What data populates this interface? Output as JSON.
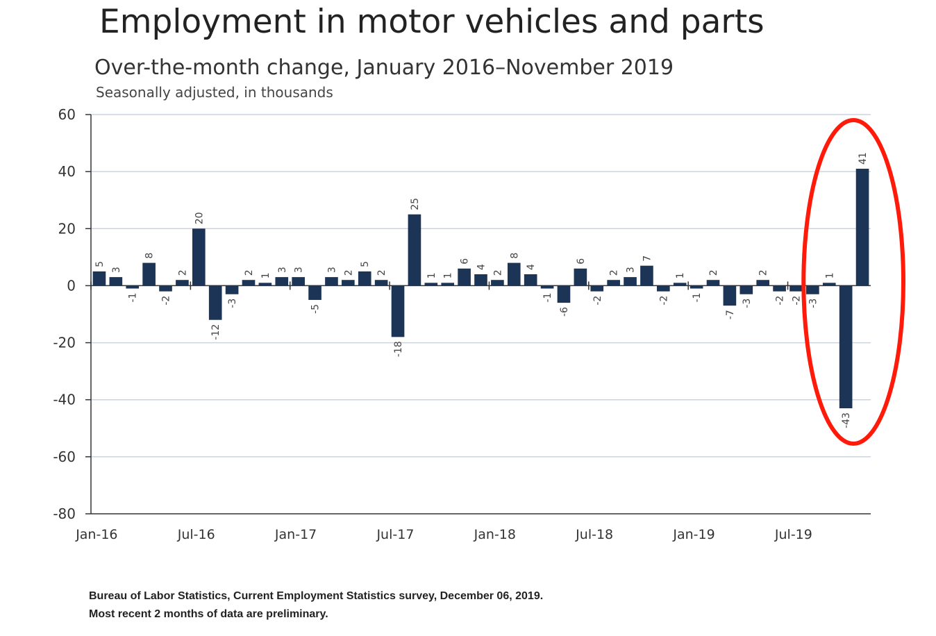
{
  "title": "Employment in motor vehicles and parts",
  "subtitle": "Over-the-month change, January 2016–November 2019",
  "unit_note": "Seasonally adjusted, in thousands",
  "source_line1": "Bureau of Labor Statistics, Current Employment Statistics survey, December 06, 2019.",
  "source_line2": "Most recent 2 months of data are preliminary.",
  "colors": {
    "bar": "#1c3557",
    "grid": "#c9d3e6",
    "highlight": "#ff1a0a",
    "axis": "#333333"
  },
  "chart_data": {
    "type": "bar",
    "title": "Employment in motor vehicles and parts",
    "subtitle": "Over-the-month change, January 2016–November 2019",
    "ylabel": "Seasonally adjusted, in thousands",
    "xlabel": "",
    "ylim": [
      -80,
      60
    ],
    "yticks": [
      60,
      40,
      20,
      0,
      -20,
      -40,
      -60,
      -80
    ],
    "grid": true,
    "xtick_labels": [
      "Jan-16",
      "Jul-16",
      "Jan-17",
      "Jul-17",
      "Jan-18",
      "Jul-18",
      "Jan-19",
      "Jul-19"
    ],
    "xtick_indices": [
      0,
      6,
      12,
      18,
      24,
      30,
      36,
      42
    ],
    "categories": [
      "Jan-16",
      "Feb-16",
      "Mar-16",
      "Apr-16",
      "May-16",
      "Jun-16",
      "Jul-16",
      "Aug-16",
      "Sep-16",
      "Oct-16",
      "Nov-16",
      "Dec-16",
      "Jan-17",
      "Feb-17",
      "Mar-17",
      "Apr-17",
      "May-17",
      "Jun-17",
      "Jul-17",
      "Aug-17",
      "Sep-17",
      "Oct-17",
      "Nov-17",
      "Dec-17",
      "Jan-18",
      "Feb-18",
      "Mar-18",
      "Apr-18",
      "May-18",
      "Jun-18",
      "Jul-18",
      "Aug-18",
      "Sep-18",
      "Oct-18",
      "Nov-18",
      "Dec-18",
      "Jan-19",
      "Feb-19",
      "Mar-19",
      "Apr-19",
      "May-19",
      "Jun-19",
      "Jul-19",
      "Aug-19",
      "Sep-19",
      "Oct-19",
      "Nov-19"
    ],
    "values": [
      5,
      3,
      -1,
      8,
      -2,
      2,
      20,
      -12,
      -3,
      2,
      1,
      3,
      3,
      -5,
      3,
      2,
      5,
      2,
      -18,
      25,
      1,
      1,
      6,
      4,
      2,
      8,
      4,
      -1,
      -6,
      6,
      -2,
      2,
      3,
      7,
      -2,
      1,
      -1,
      2,
      -7,
      -3,
      2,
      -2,
      -2,
      -3,
      1,
      -43,
      41
    ],
    "value_labels": [
      "5",
      "3",
      "-1",
      "8",
      "-2",
      "2",
      "20",
      "-12",
      "-3",
      "2",
      "1",
      "3",
      "3",
      "-5",
      "3",
      "2",
      "5",
      "2",
      "-18",
      "25",
      "1",
      "1",
      "6",
      "4",
      "2",
      "8",
      "4",
      "-1",
      "-6",
      "6",
      "-2",
      "2",
      "3",
      "7",
      "-2",
      "1",
      "-1",
      "2",
      "-7",
      "-3",
      "2",
      "-2",
      "-2",
      "-3",
      "1",
      "-43",
      "41"
    ],
    "annotation": "red ellipse highlighting Oct-19 and Nov-19"
  }
}
